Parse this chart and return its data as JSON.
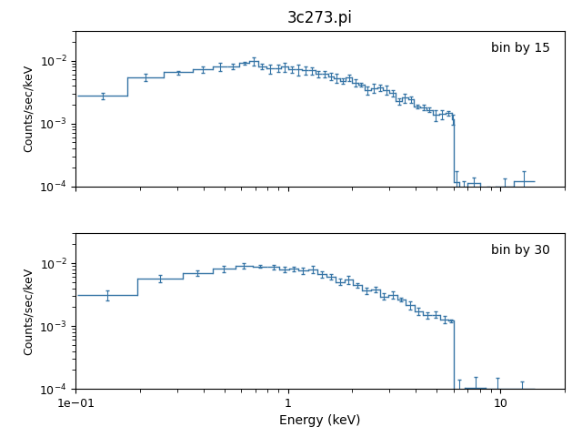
{
  "title": "3c273.pi",
  "xlabel": "Energy (keV)",
  "ylabel": "Counts/sec/keV",
  "color": "#3574a5",
  "xlim": [
    0.1,
    20.0
  ],
  "ylim": [
    0.0001,
    0.03
  ],
  "annotation1": "bin by 15",
  "annotation2": "bin by 30",
  "linewidth": 1.0,
  "capsize": 1.5,
  "elinewidth": 0.8
}
